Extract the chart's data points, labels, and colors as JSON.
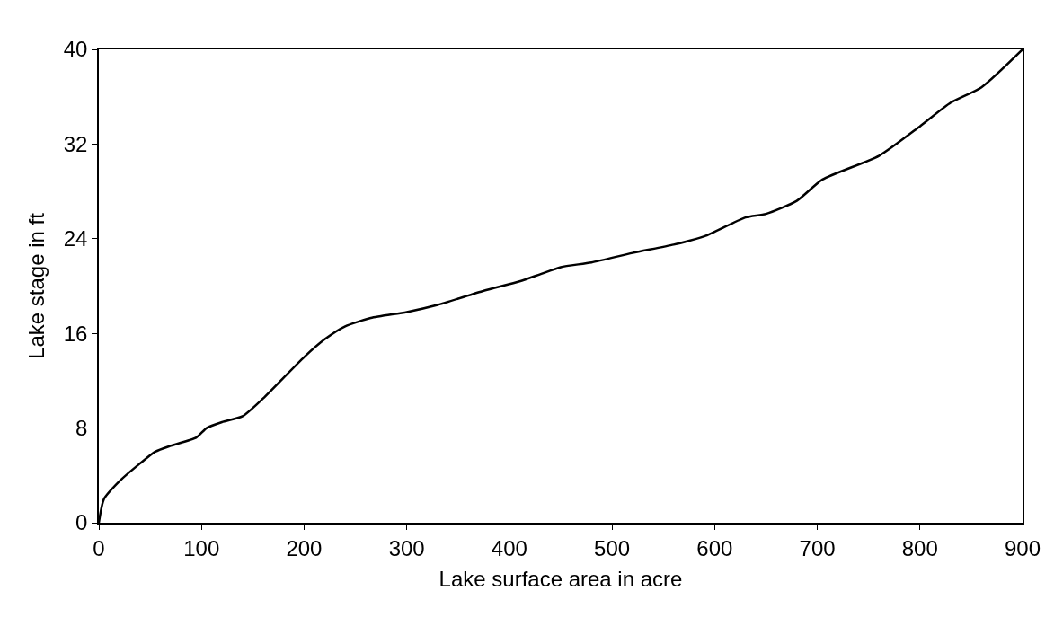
{
  "chart_data": {
    "type": "line",
    "xlabel": "Lake surface area in acre",
    "ylabel": "Lake stage in ft",
    "x": [
      0,
      5,
      20,
      40,
      55,
      70,
      95,
      105,
      120,
      140,
      160,
      200,
      220,
      240,
      265,
      300,
      330,
      375,
      410,
      430,
      450,
      480,
      520,
      560,
      590,
      630,
      650,
      680,
      705,
      760,
      800,
      830,
      860,
      900
    ],
    "series": [
      {
        "color": "#000000",
        "values": [
          0,
          2,
          3.5,
          5,
          6,
          6.5,
          7.2,
          8,
          8.5,
          9,
          10.5,
          14,
          15.5,
          16.6,
          17.3,
          17.8,
          18.4,
          19.6,
          20.4,
          21,
          21.6,
          22,
          22.8,
          23.5,
          24.2,
          25.8,
          26.1,
          27.2,
          29,
          31,
          33.5,
          35.5,
          36.8,
          40
        ]
      }
    ],
    "xlim": [
      0,
      900
    ],
    "xticks": [
      0,
      100,
      200,
      300,
      400,
      500,
      600,
      700,
      800,
      900
    ],
    "ylim": [
      0,
      40
    ],
    "yticks": [
      0,
      8,
      16,
      24,
      32,
      40
    ],
    "grid": false,
    "legend": false,
    "marker": "none",
    "line_style": "solid"
  }
}
